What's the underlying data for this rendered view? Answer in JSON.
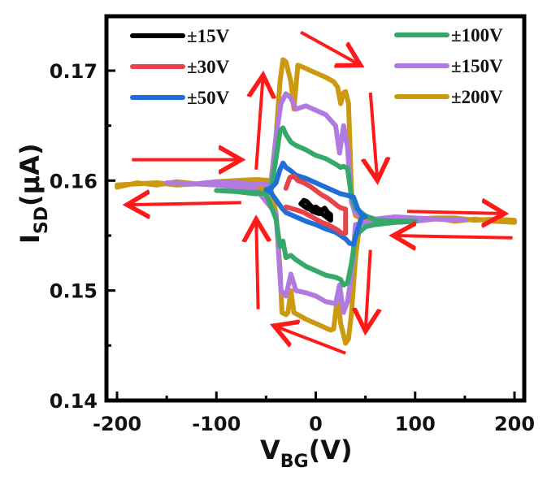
{
  "chart_data": {
    "type": "line",
    "title": "",
    "xlabel": {
      "main": "V",
      "sub": "BG",
      "unit": "(V)"
    },
    "ylabel": {
      "main": "I",
      "sub": "SD",
      "unit": "(μA)"
    },
    "xlim": [
      -205,
      210
    ],
    "ylim": [
      0.14,
      0.1745
    ],
    "xticks": [
      -200,
      -100,
      0,
      100,
      200
    ],
    "xtick_labels": [
      "-200",
      "-100",
      "0",
      "100",
      "200"
    ],
    "xminor": [
      -150,
      -50,
      50,
      150
    ],
    "yticks": [
      0.14,
      0.15,
      0.16,
      0.17
    ],
    "ytick_labels": [
      "0.14",
      "0.15",
      "0.16",
      "0.17"
    ],
    "yminor": [
      0.145,
      0.155,
      0.165
    ],
    "grid": false,
    "legend": [
      {
        "label": "±15V",
        "color": "#000000",
        "placement": "top-left"
      },
      {
        "label": "±30V",
        "color": "#e8434b",
        "placement": "top-left"
      },
      {
        "label": "±50V",
        "color": "#1f6fd6",
        "placement": "top-left"
      },
      {
        "label": "±100V",
        "color": "#35a96a",
        "placement": "top-right"
      },
      {
        "label": "±150V",
        "color": "#b17ae0",
        "placement": "top-right"
      },
      {
        "label": "±200V",
        "color": "#cc9a10",
        "placement": "top-right"
      }
    ],
    "series": [
      {
        "name": "±200V",
        "color": "#cc9a10",
        "x": [
          -200,
          -180,
          -160,
          -140,
          -120,
          -100,
          -80,
          -60,
          -45,
          -40,
          -36,
          -33,
          -30,
          -25,
          -22,
          -18,
          -15,
          -10,
          0,
          10,
          18,
          22,
          25,
          28,
          30,
          33,
          36,
          38,
          40,
          45,
          60,
          80,
          100,
          120,
          140,
          160,
          180,
          200,
          200,
          180,
          160,
          140,
          120,
          100,
          80,
          60,
          45,
          40,
          36,
          33,
          30,
          25,
          22,
          18,
          15,
          10,
          0,
          -10,
          -18,
          -22,
          -25,
          -28,
          -30,
          -34,
          -36,
          -40,
          -45,
          -60,
          -80,
          -100,
          -120,
          -140,
          -160,
          -180,
          -200
        ],
        "y": [
          0.1594,
          0.1598,
          0.1596,
          0.1599,
          0.1597,
          0.1599,
          0.16,
          0.1601,
          0.16,
          0.164,
          0.169,
          0.171,
          0.1708,
          0.169,
          0.1665,
          0.1705,
          0.1704,
          0.1702,
          0.1698,
          0.1694,
          0.169,
          0.1685,
          0.167,
          0.168,
          0.1681,
          0.167,
          0.159,
          0.1575,
          0.1568,
          0.1566,
          0.1565,
          0.1567,
          0.1564,
          0.1566,
          0.1563,
          0.1565,
          0.1563,
          0.1562,
          0.1564,
          0.1565,
          0.1564,
          0.1566,
          0.1566,
          0.1565,
          0.1564,
          0.1565,
          0.1566,
          0.153,
          0.148,
          0.1456,
          0.1452,
          0.147,
          0.1495,
          0.1465,
          0.1464,
          0.1466,
          0.147,
          0.1474,
          0.1478,
          0.148,
          0.15,
          0.148,
          0.1478,
          0.148,
          0.152,
          0.157,
          0.1592,
          0.1593,
          0.1595,
          0.1596,
          0.1597,
          0.1596,
          0.1598,
          0.1597,
          0.1596
        ]
      },
      {
        "name": "±150V",
        "color": "#b17ae0",
        "x": [
          -150,
          -120,
          -100,
          -80,
          -60,
          -45,
          -40,
          -35,
          -30,
          -25,
          -20,
          -10,
          0,
          10,
          20,
          24,
          28,
          32,
          36,
          40,
          60,
          80,
          100,
          120,
          150,
          150,
          120,
          100,
          80,
          60,
          40,
          36,
          32,
          28,
          24,
          20,
          10,
          0,
          -10,
          -20,
          -25,
          -30,
          -35,
          -40,
          -60,
          -80,
          -100,
          -120,
          -150
        ],
        "y": [
          0.1598,
          0.1597,
          0.1599,
          0.1598,
          0.1597,
          0.1596,
          0.164,
          0.167,
          0.1679,
          0.1675,
          0.1665,
          0.1668,
          0.1664,
          0.166,
          0.165,
          0.1625,
          0.165,
          0.163,
          0.158,
          0.157,
          0.1565,
          0.1567,
          0.1566,
          0.1565,
          0.1564,
          0.1564,
          0.1565,
          0.1563,
          0.1562,
          0.1563,
          0.156,
          0.1515,
          0.149,
          0.148,
          0.1505,
          0.1488,
          0.149,
          0.1495,
          0.1498,
          0.15,
          0.1515,
          0.1495,
          0.15,
          0.157,
          0.1592,
          0.1594,
          0.1596,
          0.1597,
          0.1598
        ]
      },
      {
        "name": "±100V",
        "color": "#35a96a",
        "x": [
          -100,
          -80,
          -60,
          -50,
          -45,
          -40,
          -36,
          -33,
          -30,
          -25,
          -20,
          -10,
          0,
          10,
          20,
          25,
          28,
          32,
          36,
          40,
          50,
          60,
          80,
          100,
          100,
          80,
          60,
          50,
          40,
          36,
          32,
          28,
          25,
          20,
          10,
          0,
          -10,
          -20,
          -25,
          -30,
          -33,
          -36,
          -40,
          -50,
          -60,
          -80,
          -100
        ],
        "y": [
          0.1591,
          0.159,
          0.1588,
          0.1589,
          0.1592,
          0.162,
          0.1645,
          0.1648,
          0.1642,
          0.1635,
          0.1632,
          0.1628,
          0.1623,
          0.162,
          0.1615,
          0.1612,
          0.1613,
          0.1611,
          0.1585,
          0.1575,
          0.1568,
          0.1564,
          0.1563,
          0.1563,
          0.1563,
          0.1562,
          0.156,
          0.1558,
          0.155,
          0.1525,
          0.1507,
          0.1505,
          0.151,
          0.1512,
          0.1514,
          0.1518,
          0.1522,
          0.1528,
          0.1532,
          0.153,
          0.1545,
          0.154,
          0.1565,
          0.1588,
          0.1589,
          0.159,
          0.1591
        ]
      },
      {
        "name": "±50V",
        "color": "#1f6fd6",
        "x": [
          -50,
          -45,
          -40,
          -36,
          -33,
          -30,
          -25,
          -20,
          -10,
          0,
          10,
          20,
          25,
          30,
          34,
          38,
          42,
          46,
          50,
          50,
          46,
          42,
          38,
          34,
          30,
          25,
          20,
          10,
          0,
          -10,
          -20,
          -25,
          -30,
          -34,
          -38,
          -42,
          -46,
          -50
        ],
        "y": [
          0.1592,
          0.1593,
          0.1598,
          0.161,
          0.1616,
          0.1612,
          0.1609,
          0.1605,
          0.1602,
          0.1598,
          0.1594,
          0.159,
          0.1588,
          0.1587,
          0.1586,
          0.1585,
          0.1575,
          0.1569,
          0.1567,
          0.1567,
          0.1566,
          0.1555,
          0.1542,
          0.1543,
          0.1547,
          0.155,
          0.1553,
          0.1556,
          0.156,
          0.1563,
          0.1567,
          0.1569,
          0.1571,
          0.1575,
          0.158,
          0.1585,
          0.159,
          0.1592
        ]
      },
      {
        "name": "±30V",
        "color": "#e8434b",
        "x": [
          -30,
          -26,
          -22,
          -18,
          -12,
          -6,
          0,
          6,
          12,
          18,
          22,
          26,
          30,
          30,
          26,
          22,
          18,
          12,
          6,
          0,
          -6,
          -12,
          -18,
          -22,
          -26,
          -30
        ],
        "y": [
          0.1593,
          0.1603,
          0.1604,
          0.16,
          0.1598,
          0.1595,
          0.1591,
          0.1587,
          0.1584,
          0.158,
          0.1577,
          0.1575,
          0.1574,
          0.1552,
          0.1552,
          0.1555,
          0.1557,
          0.156,
          0.1562,
          0.1565,
          0.1568,
          0.1571,
          0.1573,
          0.1574,
          0.1575,
          0.1576
        ]
      },
      {
        "name": "±15V",
        "color": "#000000",
        "x": [
          -15,
          -12,
          -9,
          -6,
          -3,
          0,
          3,
          6,
          9,
          12,
          15,
          15,
          12,
          9,
          6,
          3,
          0,
          -3,
          -6,
          -9,
          -12,
          -15
        ],
        "y": [
          0.1579,
          0.1582,
          0.1581,
          0.1578,
          0.1575,
          0.1576,
          0.1574,
          0.1573,
          0.1575,
          0.1571,
          0.1569,
          0.1564,
          0.1566,
          0.1568,
          0.157,
          0.157,
          0.1571,
          0.1572,
          0.1574,
          0.1575,
          0.1577,
          0.1579
        ]
      }
    ],
    "annotations": [
      {
        "type": "arrow",
        "meaning": "sweep direction",
        "from": [
          -185,
          0.1619
        ],
        "to": [
          -75,
          0.1619
        ]
      },
      {
        "type": "arrow",
        "meaning": "sweep direction",
        "from": [
          -60,
          0.161
        ],
        "to": [
          -53,
          0.1696
        ]
      },
      {
        "type": "arrow",
        "meaning": "sweep direction",
        "from": [
          -15,
          0.1735
        ],
        "to": [
          45,
          0.1705
        ]
      },
      {
        "type": "arrow",
        "meaning": "sweep direction",
        "from": [
          55,
          0.168
        ],
        "to": [
          62,
          0.16
        ]
      },
      {
        "type": "arrow",
        "meaning": "sweep direction",
        "from": [
          92,
          0.1572
        ],
        "to": [
          190,
          0.157
        ]
      },
      {
        "type": "arrow",
        "meaning": "sweep direction",
        "from": [
          198,
          0.1548
        ],
        "to": [
          78,
          0.155
        ]
      },
      {
        "type": "arrow",
        "meaning": "sweep direction",
        "from": [
          55,
          0.1537
        ],
        "to": [
          50,
          0.1463
        ]
      },
      {
        "type": "arrow",
        "meaning": "sweep direction",
        "from": [
          30,
          0.1443
        ],
        "to": [
          -42,
          0.1468
        ]
      },
      {
        "type": "arrow",
        "meaning": "sweep direction",
        "from": [
          -58,
          0.1483
        ],
        "to": [
          -60,
          0.1565
        ]
      },
      {
        "type": "arrow",
        "meaning": "sweep direction",
        "from": [
          -75,
          0.158
        ],
        "to": [
          -190,
          0.1578
        ]
      }
    ],
    "arrow_color": "#ff1a1a"
  }
}
